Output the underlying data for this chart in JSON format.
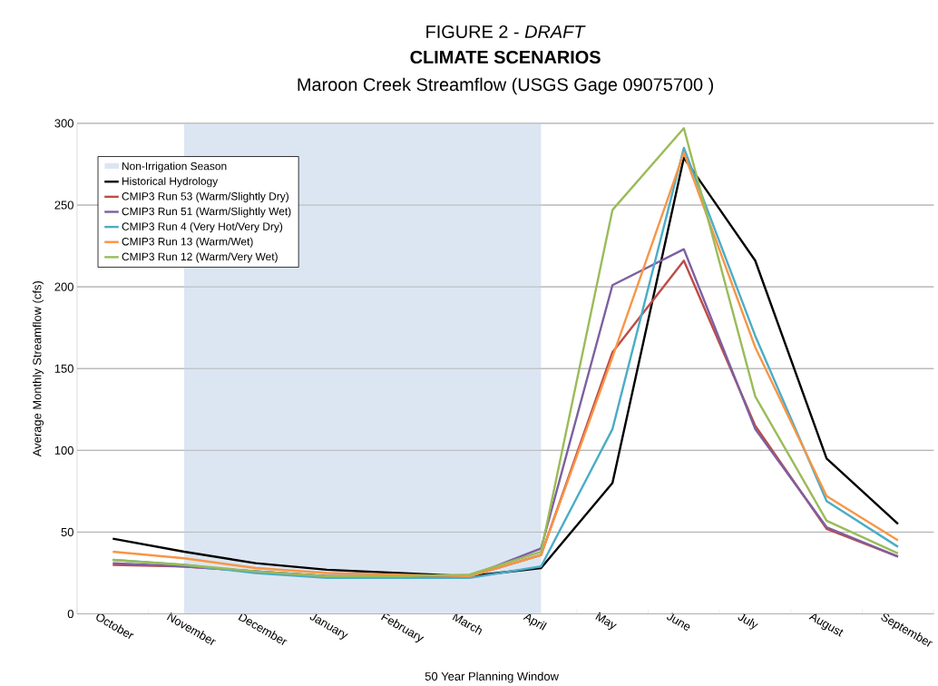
{
  "chart_data": {
    "type": "line",
    "annotations": [
      "FIGURE 2 - *DRAFT*"
    ],
    "title": "CLIMATE SCENARIOS",
    "subtitle": "Maroon Creek Streamflow (USGS Gage 09075700 )",
    "xlabel": "50 Year Planning Window",
    "ylabel": "Average Monthly Streamflow (cfs)",
    "categories": [
      "October",
      "November",
      "December",
      "January",
      "February",
      "March",
      "April",
      "May",
      "June",
      "July",
      "August",
      "September"
    ],
    "ylim": [
      0,
      300
    ],
    "yticks": [
      0,
      50,
      100,
      150,
      200,
      250,
      300
    ],
    "grid": "y",
    "legend": "top left",
    "bands": [
      {
        "axis": "x",
        "from": "November",
        "to": "April",
        "label": "Non-Irrigation Season",
        "color": "#dce6f2"
      }
    ],
    "series": [
      {
        "name": "Historical Hydrology",
        "color": "#000000",
        "values": [
          46,
          38,
          31,
          27,
          25,
          23,
          28,
          80,
          279,
          216,
          95,
          55
        ]
      },
      {
        "name": "CMIP3 Run 53 (Warm/Slightly Dry)",
        "color": "#be4b48",
        "values": [
          30,
          29,
          26,
          23,
          23,
          23,
          36,
          160,
          216,
          115,
          52,
          35
        ]
      },
      {
        "name": "CMIP3 Run 51 (Warm/Slightly Wet)",
        "color": "#7d5fa0",
        "values": [
          31,
          29,
          26,
          23,
          23,
          23,
          40,
          201,
          223,
          113,
          53,
          35
        ]
      },
      {
        "name": "CMIP3 Run 4 (Very Hot/Very Dry)",
        "color": "#4bacc6",
        "values": [
          33,
          30,
          25,
          22,
          22,
          22,
          29,
          113,
          285,
          170,
          69,
          41
        ]
      },
      {
        "name": "CMIP3 Run 13 (Warm/Wet)",
        "color": "#f79646",
        "values": [
          38,
          34,
          28,
          25,
          24,
          23,
          36,
          157,
          282,
          163,
          72,
          45
        ]
      },
      {
        "name": "CMIP3 Run 12 (Warm/Very Wet)",
        "color": "#9bbb59",
        "values": [
          33,
          30,
          26,
          23,
          23,
          24,
          38,
          247,
          297,
          133,
          57,
          37
        ]
      }
    ]
  }
}
